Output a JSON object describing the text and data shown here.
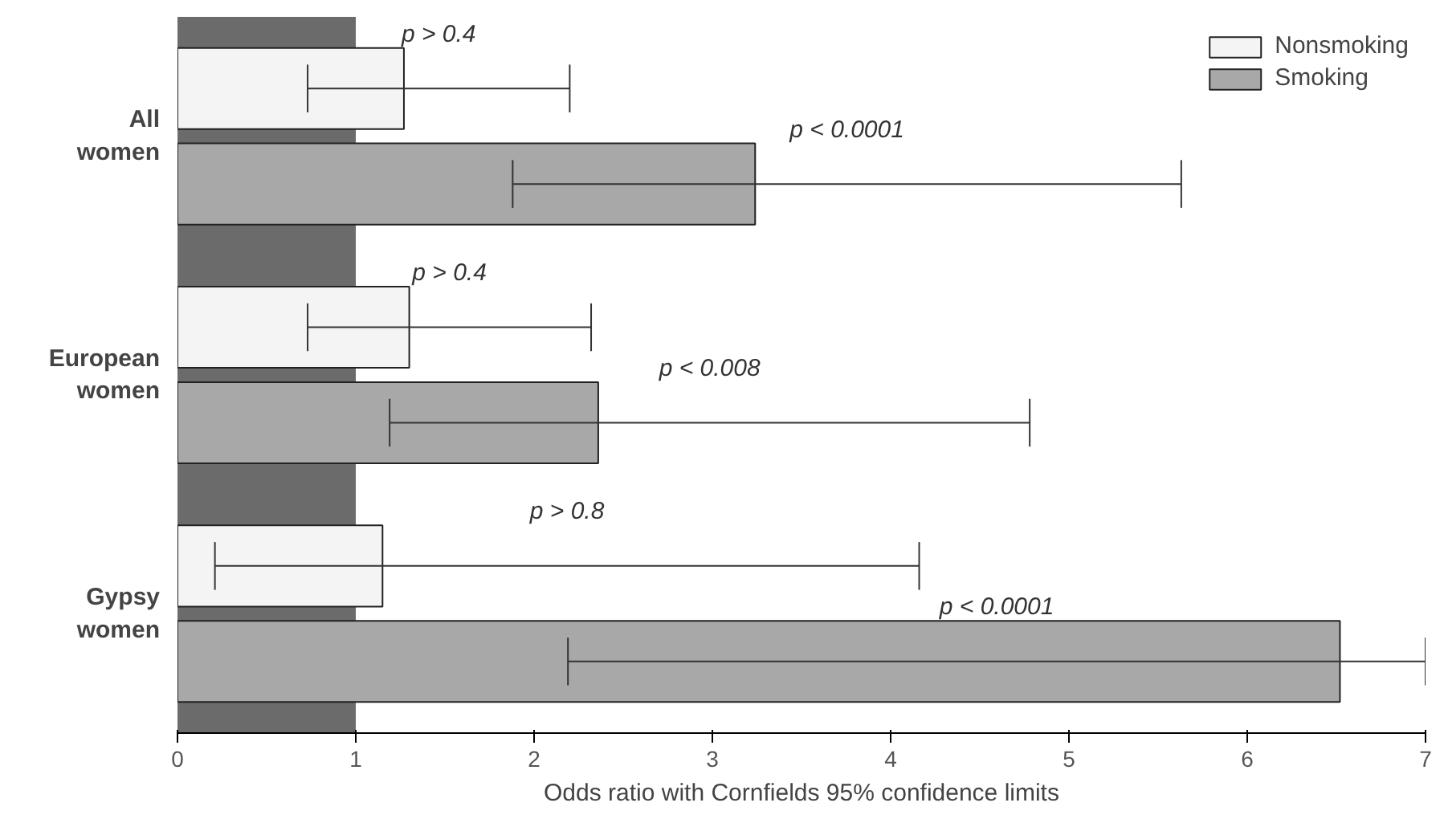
{
  "chart_data": {
    "type": "bar",
    "orientation": "horizontal",
    "xlabel": "Odds ratio with Cornfields 95% confidence limits",
    "categories": [
      "All women",
      "European women",
      "Gypsy women"
    ],
    "series": [
      {
        "name": "Nonsmoking",
        "color": "#f4f4f4",
        "values": [
          1.27,
          1.3,
          1.15
        ],
        "errors": [
          [
            0.73,
            2.2
          ],
          [
            0.73,
            2.32
          ],
          [
            0.21,
            4.16
          ]
        ]
      },
      {
        "name": "Smoking",
        "color": "#a8a8a8",
        "values": [
          3.24,
          2.36,
          6.52
        ],
        "errors": [
          [
            1.88,
            5.63
          ],
          [
            1.19,
            4.78
          ],
          [
            2.19,
            7
          ]
        ]
      }
    ],
    "xlim": [
      0,
      7
    ],
    "xticks": [
      0,
      1,
      2,
      3,
      4,
      5,
      6,
      7
    ],
    "bands": [
      {
        "axis": "x",
        "from": 0,
        "to": 1,
        "color": "#6b6b6b"
      }
    ],
    "annotations": [
      "p > 0.4",
      "p < 0.0001",
      "p > 0.4",
      "p < 0.008",
      "p > 0.8",
      "p < 0.0001"
    ],
    "grid": false,
    "legend": "top right"
  }
}
